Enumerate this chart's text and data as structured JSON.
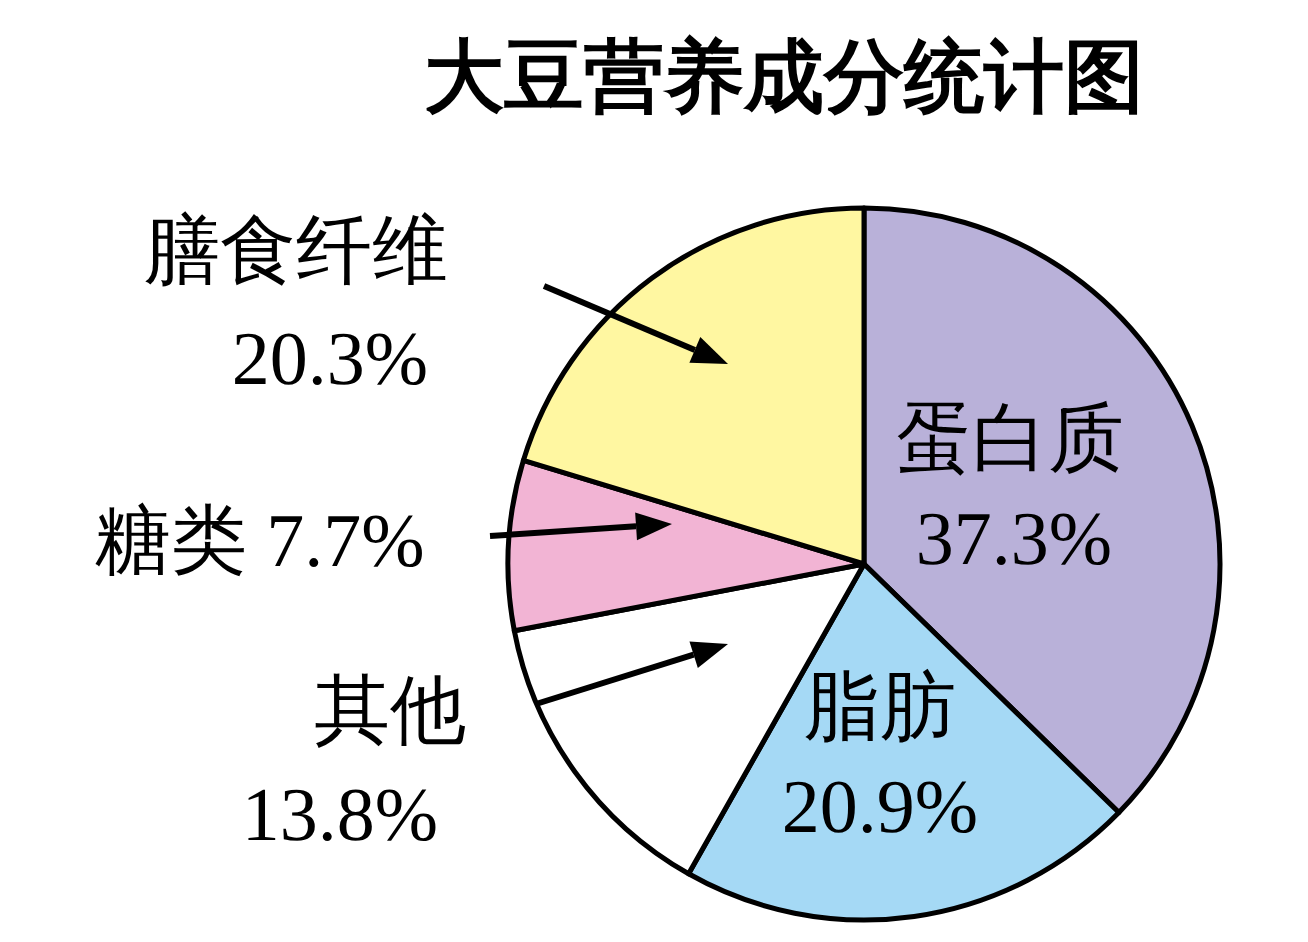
{
  "chart_data": {
    "type": "pie",
    "title": "大豆营养成分统计图",
    "categories": [
      "蛋白质",
      "脂肪",
      "其他",
      "糖类",
      "膳食纤维"
    ],
    "values": [
      37.3,
      20.9,
      13.8,
      7.7,
      20.3
    ],
    "colors": [
      "#b9b1d9",
      "#a5d9f5",
      "#ffffff",
      "#f2b4d4",
      "#fff7a1"
    ],
    "value_labels": [
      "37.3%",
      "20.9%",
      "13.8%",
      "7.7%",
      "20.3%"
    ]
  }
}
